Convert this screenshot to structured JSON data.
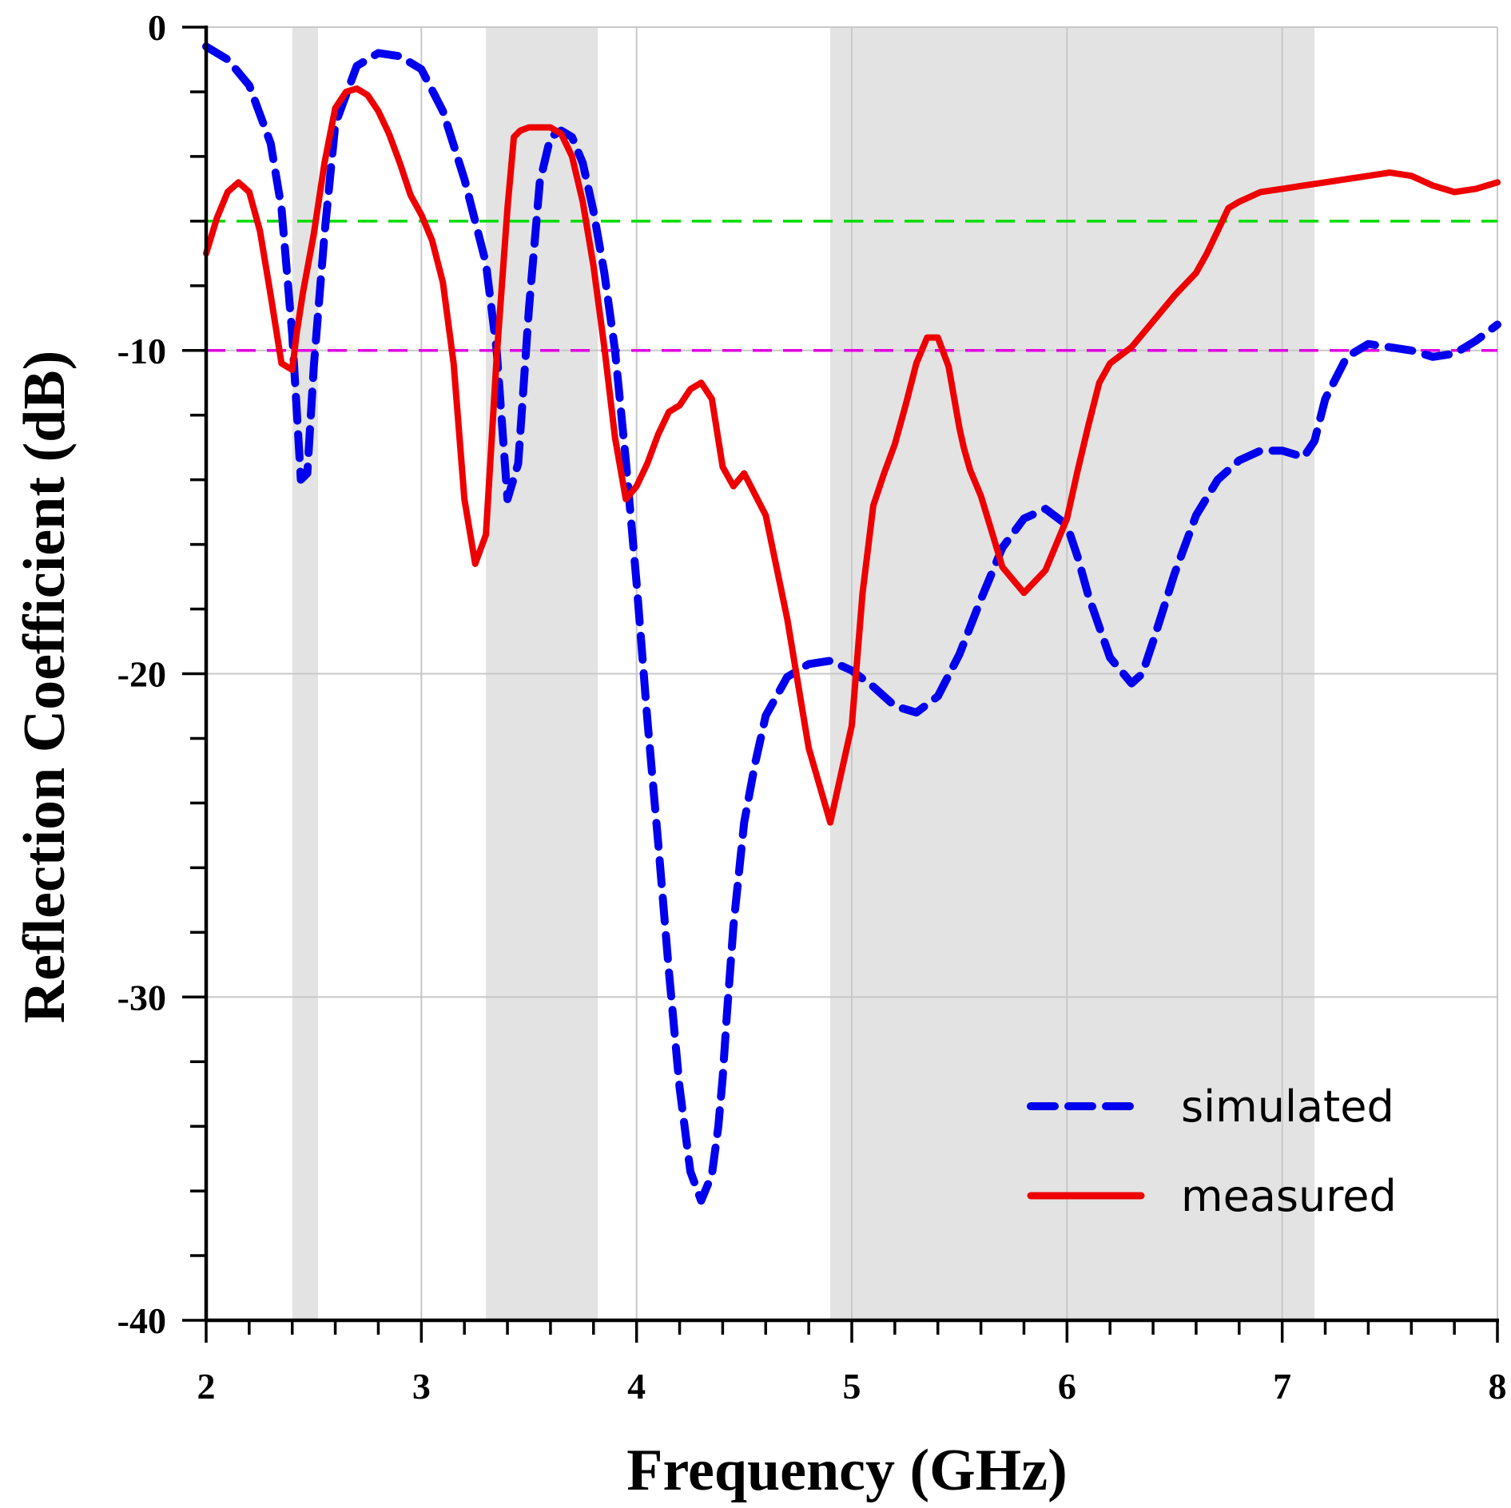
{
  "chart_data": {
    "type": "line",
    "title": "",
    "xlabel": "Frequency (GHz)",
    "ylabel": "Reflection Coefficient (dB)",
    "xlim": [
      2,
      8
    ],
    "ylim": [
      -40,
      0
    ],
    "x_ticks": [
      2,
      3,
      4,
      5,
      6,
      7,
      8
    ],
    "x_tick_labels": [
      "2",
      "3",
      "4",
      "5",
      "6",
      "7",
      "8"
    ],
    "y_ticks": [
      0,
      -10,
      -20,
      -30,
      -40
    ],
    "y_tick_labels": [
      "0",
      "-10",
      "-20",
      "-30",
      "-40"
    ],
    "grid": true,
    "legend_position": "bottom-right",
    "shaded_bands": [
      {
        "from": 2.4,
        "to": 2.52
      },
      {
        "from": 3.3,
        "to": 3.82
      },
      {
        "from": 4.9,
        "to": 7.15
      }
    ],
    "reference_lines": [
      {
        "y": -6,
        "color": "#00dd00"
      },
      {
        "y": -10,
        "color": "#e000e0"
      }
    ],
    "series": [
      {
        "name": "simulated",
        "color": "#0000ee",
        "style": "dashed",
        "x": [
          2.0,
          2.1,
          2.2,
          2.3,
          2.35,
          2.4,
          2.44,
          2.47,
          2.5,
          2.55,
          2.6,
          2.7,
          2.8,
          2.9,
          3.0,
          3.1,
          3.2,
          3.3,
          3.35,
          3.4,
          3.45,
          3.5,
          3.55,
          3.6,
          3.65,
          3.7,
          3.75,
          3.8,
          3.85,
          3.9,
          3.95,
          4.0,
          4.05,
          4.1,
          4.15,
          4.2,
          4.25,
          4.3,
          4.35,
          4.38,
          4.4,
          4.42,
          4.45,
          4.5,
          4.55,
          4.6,
          4.7,
          4.8,
          4.9,
          5.0,
          5.1,
          5.2,
          5.3,
          5.4,
          5.5,
          5.6,
          5.7,
          5.8,
          5.9,
          6.0,
          6.05,
          6.1,
          6.2,
          6.3,
          6.35,
          6.4,
          6.5,
          6.6,
          6.7,
          6.8,
          6.9,
          7.0,
          7.1,
          7.15,
          7.2,
          7.3,
          7.4,
          7.5,
          7.6,
          7.7,
          7.8,
          7.9,
          8.0
        ],
        "values": [
          -0.6,
          -1.0,
          -1.8,
          -3.6,
          -5.6,
          -9.5,
          -14.0,
          -13.8,
          -10.5,
          -6.4,
          -3.0,
          -1.2,
          -0.8,
          -0.9,
          -1.3,
          -2.6,
          -4.7,
          -7.3,
          -10.0,
          -14.6,
          -13.5,
          -8.7,
          -4.8,
          -3.4,
          -3.2,
          -3.4,
          -4.2,
          -5.7,
          -7.6,
          -10.0,
          -13.4,
          -17.2,
          -21.4,
          -25.2,
          -29.2,
          -32.8,
          -35.4,
          -36.3,
          -35.5,
          -34.0,
          -32.5,
          -30.5,
          -27.8,
          -24.6,
          -22.8,
          -21.3,
          -20.1,
          -19.7,
          -19.6,
          -19.9,
          -20.4,
          -21.0,
          -21.2,
          -20.7,
          -19.4,
          -17.7,
          -16.1,
          -15.2,
          -14.9,
          -15.4,
          -16.4,
          -17.6,
          -19.5,
          -20.3,
          -20.0,
          -19.0,
          -16.9,
          -15.1,
          -14.0,
          -13.4,
          -13.1,
          -13.1,
          -13.3,
          -12.8,
          -11.5,
          -10.2,
          -9.8,
          -9.9,
          -10.0,
          -10.2,
          -10.1,
          -9.7,
          -9.2
        ]
      },
      {
        "name": "measured",
        "color": "#ee0000",
        "style": "solid",
        "x": [
          2.0,
          2.05,
          2.1,
          2.15,
          2.2,
          2.25,
          2.3,
          2.35,
          2.4,
          2.42,
          2.45,
          2.5,
          2.55,
          2.6,
          2.65,
          2.7,
          2.75,
          2.8,
          2.85,
          2.9,
          2.95,
          3.0,
          3.05,
          3.1,
          3.15,
          3.2,
          3.25,
          3.3,
          3.35,
          3.4,
          3.43,
          3.46,
          3.5,
          3.55,
          3.6,
          3.65,
          3.7,
          3.75,
          3.8,
          3.85,
          3.9,
          3.95,
          4.0,
          4.05,
          4.1,
          4.15,
          4.2,
          4.25,
          4.3,
          4.35,
          4.4,
          4.45,
          4.5,
          4.6,
          4.7,
          4.8,
          4.9,
          5.0,
          5.05,
          5.1,
          5.15,
          5.2,
          5.25,
          5.3,
          5.35,
          5.4,
          5.45,
          5.5,
          5.52,
          5.55,
          5.6,
          5.65,
          5.7,
          5.8,
          5.9,
          6.0,
          6.05,
          6.1,
          6.15,
          6.2,
          6.3,
          6.4,
          6.5,
          6.6,
          6.65,
          6.7,
          6.75,
          6.8,
          6.9,
          7.0,
          7.1,
          7.2,
          7.3,
          7.4,
          7.5,
          7.6,
          7.7,
          7.8,
          7.9,
          8.0
        ],
        "values": [
          -7.0,
          -5.9,
          -5.1,
          -4.8,
          -5.1,
          -6.3,
          -8.3,
          -10.4,
          -10.6,
          -9.5,
          -8.2,
          -6.4,
          -4.2,
          -2.5,
          -2.0,
          -1.9,
          -2.1,
          -2.6,
          -3.3,
          -4.2,
          -5.2,
          -5.8,
          -6.6,
          -7.9,
          -10.4,
          -14.6,
          -16.6,
          -15.7,
          -10.2,
          -5.6,
          -3.4,
          -3.2,
          -3.1,
          -3.1,
          -3.1,
          -3.3,
          -4.0,
          -5.4,
          -7.4,
          -9.9,
          -12.7,
          -14.6,
          -14.2,
          -13.5,
          -12.6,
          -11.9,
          -11.7,
          -11.2,
          -11.0,
          -11.5,
          -13.6,
          -14.2,
          -13.8,
          -15.1,
          -18.3,
          -22.3,
          -24.6,
          -21.6,
          -17.5,
          -14.8,
          -13.8,
          -12.9,
          -11.7,
          -10.4,
          -9.6,
          -9.6,
          -10.5,
          -12.4,
          -13.0,
          -13.7,
          -14.5,
          -15.6,
          -16.7,
          -17.5,
          -16.8,
          -15.2,
          -13.7,
          -12.3,
          -11.0,
          -10.4,
          -9.9,
          -9.1,
          -8.3,
          -7.6,
          -7.0,
          -6.3,
          -5.6,
          -5.4,
          -5.1,
          -5.0,
          -4.9,
          -4.8,
          -4.7,
          -4.6,
          -4.5,
          -4.6,
          -4.9,
          -5.1,
          -5.0,
          -4.8
        ]
      }
    ]
  }
}
